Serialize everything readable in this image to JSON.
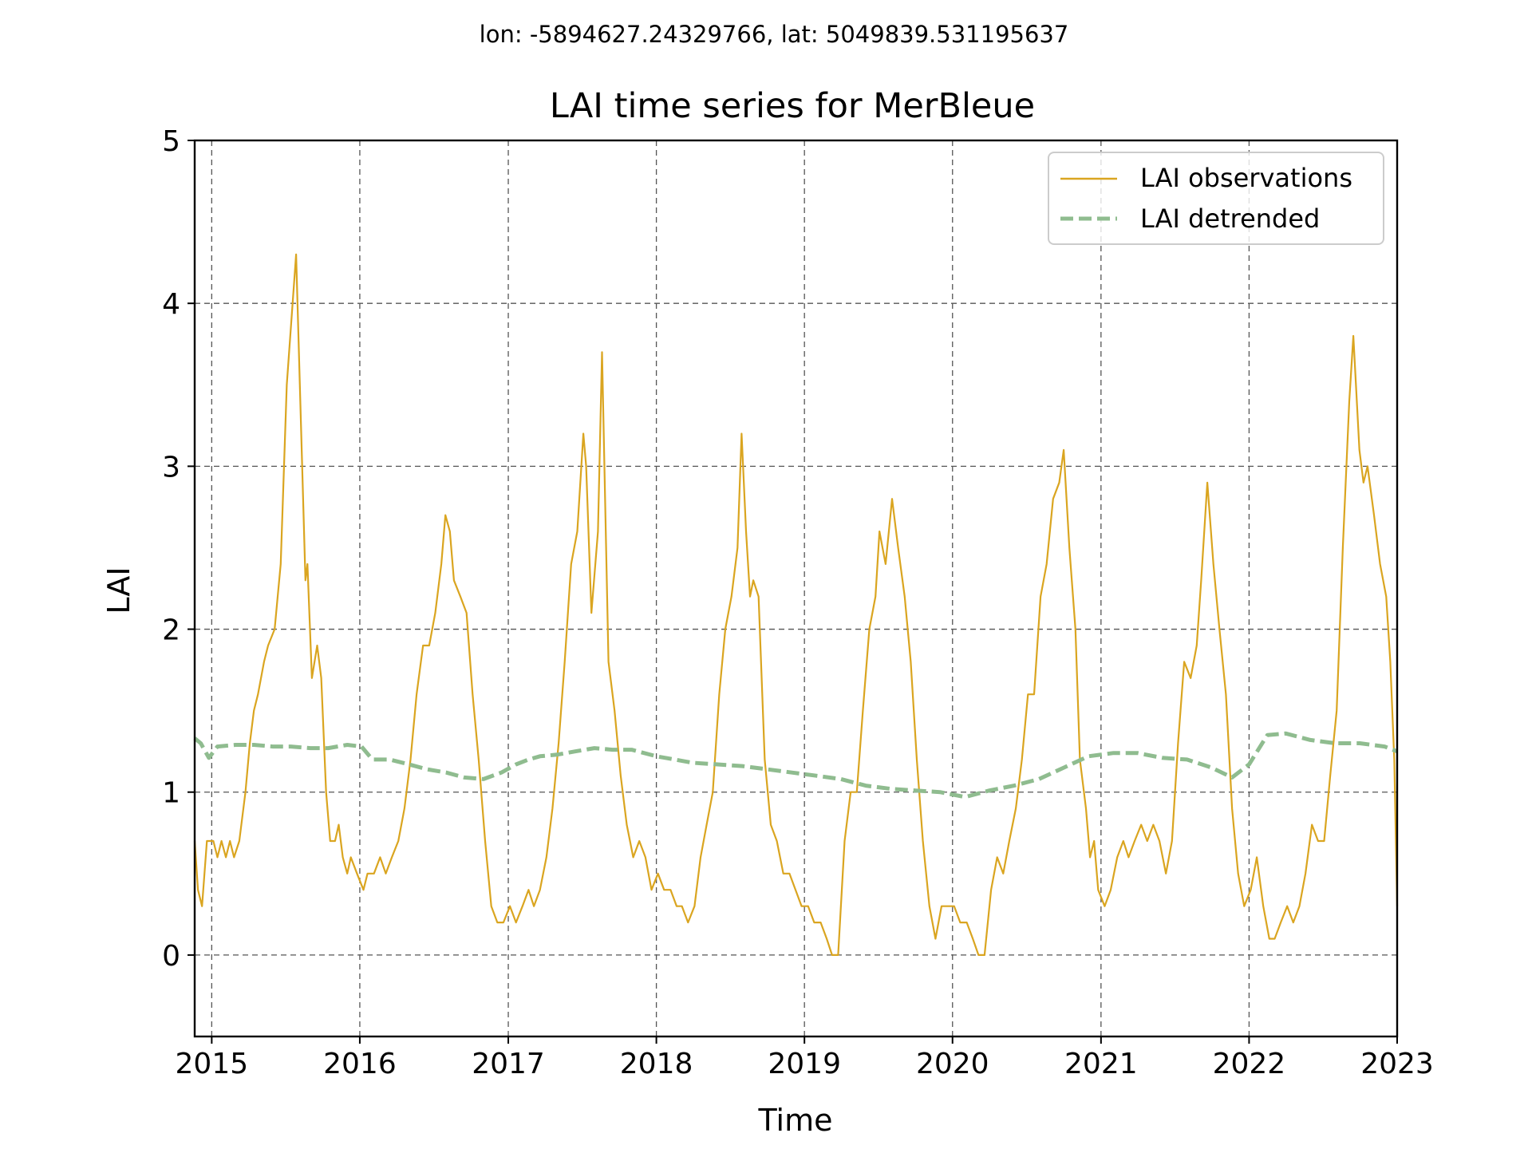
{
  "chart_data": {
    "type": "line",
    "suptitle": "lon: -5894627.24329766, lat: 5049839.531195637",
    "title": "LAI time series for MerBleue",
    "xlabel": "Time",
    "ylabel": "LAI",
    "xlim": [
      "2014-11-20",
      "2023-01-01"
    ],
    "ylim": [
      -0.5,
      5
    ],
    "x_ticks": [
      "2015",
      "2016",
      "2017",
      "2018",
      "2019",
      "2020",
      "2021",
      "2022",
      "2023"
    ],
    "y_ticks": [
      "0",
      "1",
      "2",
      "3",
      "4",
      "5"
    ],
    "grid": true,
    "legend_position": "upper-right",
    "series": [
      {
        "name": "LAI observations",
        "color": "#DAA520",
        "style": "solid",
        "points": [
          [
            "2014-11-20",
            0.7
          ],
          [
            "2014-11-28",
            0.4
          ],
          [
            "2014-12-08",
            0.3
          ],
          [
            "2014-12-20",
            0.7
          ],
          [
            "2015-01-05",
            0.7
          ],
          [
            "2015-01-15",
            0.6
          ],
          [
            "2015-01-25",
            0.7
          ],
          [
            "2015-02-05",
            0.6
          ],
          [
            "2015-02-15",
            0.7
          ],
          [
            "2015-02-25",
            0.6
          ],
          [
            "2015-03-10",
            0.7
          ],
          [
            "2015-03-25",
            1.0
          ],
          [
            "2015-04-05",
            1.3
          ],
          [
            "2015-04-15",
            1.5
          ],
          [
            "2015-04-25",
            1.6
          ],
          [
            "2015-05-10",
            1.8
          ],
          [
            "2015-05-20",
            1.9
          ],
          [
            "2015-06-05",
            2.0
          ],
          [
            "2015-06-20",
            2.4
          ],
          [
            "2015-07-05",
            3.5
          ],
          [
            "2015-07-28",
            4.3
          ],
          [
            "2015-08-12",
            3.0
          ],
          [
            "2015-08-20",
            2.3
          ],
          [
            "2015-08-25",
            2.4
          ],
          [
            "2015-09-05",
            1.7
          ],
          [
            "2015-09-18",
            1.9
          ],
          [
            "2015-09-28",
            1.7
          ],
          [
            "2015-10-10",
            1.0
          ],
          [
            "2015-10-20",
            0.7
          ],
          [
            "2015-11-01",
            0.7
          ],
          [
            "2015-11-10",
            0.8
          ],
          [
            "2015-11-20",
            0.6
          ],
          [
            "2015-12-01",
            0.5
          ],
          [
            "2015-12-10",
            0.6
          ],
          [
            "2015-12-25",
            0.5
          ],
          [
            "2016-01-10",
            0.4
          ],
          [
            "2016-01-20",
            0.5
          ],
          [
            "2016-02-05",
            0.5
          ],
          [
            "2016-02-20",
            0.6
          ],
          [
            "2016-03-05",
            0.5
          ],
          [
            "2016-03-20",
            0.6
          ],
          [
            "2016-04-05",
            0.7
          ],
          [
            "2016-04-20",
            0.9
          ],
          [
            "2016-05-05",
            1.2
          ],
          [
            "2016-05-20",
            1.6
          ],
          [
            "2016-06-05",
            1.9
          ],
          [
            "2016-06-20",
            1.9
          ],
          [
            "2016-07-05",
            2.1
          ],
          [
            "2016-07-20",
            2.4
          ],
          [
            "2016-07-30",
            2.7
          ],
          [
            "2016-08-10",
            2.6
          ],
          [
            "2016-08-20",
            2.3
          ],
          [
            "2016-09-05",
            2.2
          ],
          [
            "2016-09-20",
            2.1
          ],
          [
            "2016-10-05",
            1.6
          ],
          [
            "2016-10-20",
            1.2
          ],
          [
            "2016-11-05",
            0.7
          ],
          [
            "2016-11-20",
            0.3
          ],
          [
            "2016-12-05",
            0.2
          ],
          [
            "2016-12-20",
            0.2
          ],
          [
            "2017-01-05",
            0.3
          ],
          [
            "2017-01-20",
            0.2
          ],
          [
            "2017-02-05",
            0.3
          ],
          [
            "2017-02-20",
            0.4
          ],
          [
            "2017-03-05",
            0.3
          ],
          [
            "2017-03-20",
            0.4
          ],
          [
            "2017-04-05",
            0.6
          ],
          [
            "2017-04-20",
            0.9
          ],
          [
            "2017-05-05",
            1.3
          ],
          [
            "2017-05-20",
            1.8
          ],
          [
            "2017-06-05",
            2.4
          ],
          [
            "2017-06-20",
            2.6
          ],
          [
            "2017-07-05",
            3.2
          ],
          [
            "2017-07-12",
            3.0
          ],
          [
            "2017-07-25",
            2.1
          ],
          [
            "2017-08-10",
            2.6
          ],
          [
            "2017-08-20",
            3.7
          ],
          [
            "2017-09-05",
            1.8
          ],
          [
            "2017-09-20",
            1.5
          ],
          [
            "2017-10-05",
            1.1
          ],
          [
            "2017-10-20",
            0.8
          ],
          [
            "2017-11-05",
            0.6
          ],
          [
            "2017-11-20",
            0.7
          ],
          [
            "2017-12-05",
            0.6
          ],
          [
            "2017-12-20",
            0.4
          ],
          [
            "2018-01-05",
            0.5
          ],
          [
            "2018-01-20",
            0.4
          ],
          [
            "2018-02-05",
            0.4
          ],
          [
            "2018-02-20",
            0.3
          ],
          [
            "2018-03-05",
            0.3
          ],
          [
            "2018-03-20",
            0.2
          ],
          [
            "2018-04-05",
            0.3
          ],
          [
            "2018-04-20",
            0.6
          ],
          [
            "2018-05-05",
            0.8
          ],
          [
            "2018-05-20",
            1.0
          ],
          [
            "2018-06-05",
            1.6
          ],
          [
            "2018-06-20",
            2.0
          ],
          [
            "2018-07-05",
            2.2
          ],
          [
            "2018-07-20",
            2.5
          ],
          [
            "2018-07-30",
            3.2
          ],
          [
            "2018-08-10",
            2.6
          ],
          [
            "2018-08-20",
            2.2
          ],
          [
            "2018-08-28",
            2.3
          ],
          [
            "2018-09-10",
            2.2
          ],
          [
            "2018-09-25",
            1.2
          ],
          [
            "2018-10-10",
            0.8
          ],
          [
            "2018-10-25",
            0.7
          ],
          [
            "2018-11-10",
            0.5
          ],
          [
            "2018-11-25",
            0.5
          ],
          [
            "2018-12-10",
            0.4
          ],
          [
            "2018-12-25",
            0.3
          ],
          [
            "2019-01-10",
            0.3
          ],
          [
            "2019-01-25",
            0.2
          ],
          [
            "2019-02-10",
            0.2
          ],
          [
            "2019-02-25",
            0.1
          ],
          [
            "2019-03-10",
            0.0
          ],
          [
            "2019-03-25",
            0.0
          ],
          [
            "2019-04-10",
            0.7
          ],
          [
            "2019-04-25",
            1.0
          ],
          [
            "2019-05-10",
            1.0
          ],
          [
            "2019-05-25",
            1.5
          ],
          [
            "2019-06-10",
            2.0
          ],
          [
            "2019-06-25",
            2.2
          ],
          [
            "2019-07-05",
            2.6
          ],
          [
            "2019-07-20",
            2.4
          ],
          [
            "2019-08-05",
            2.8
          ],
          [
            "2019-08-20",
            2.5
          ],
          [
            "2019-09-05",
            2.2
          ],
          [
            "2019-09-20",
            1.8
          ],
          [
            "2019-10-05",
            1.2
          ],
          [
            "2019-10-20",
            0.7
          ],
          [
            "2019-11-05",
            0.3
          ],
          [
            "2019-11-20",
            0.1
          ],
          [
            "2019-12-05",
            0.3
          ],
          [
            "2019-12-20",
            0.3
          ],
          [
            "2020-01-05",
            0.3
          ],
          [
            "2020-01-20",
            0.2
          ],
          [
            "2020-02-05",
            0.2
          ],
          [
            "2020-02-20",
            0.1
          ],
          [
            "2020-03-05",
            0.0
          ],
          [
            "2020-03-20",
            0.0
          ],
          [
            "2020-04-05",
            0.4
          ],
          [
            "2020-04-20",
            0.6
          ],
          [
            "2020-05-05",
            0.5
          ],
          [
            "2020-05-20",
            0.7
          ],
          [
            "2020-06-05",
            0.9
          ],
          [
            "2020-06-20",
            1.2
          ],
          [
            "2020-07-05",
            1.6
          ],
          [
            "2020-07-20",
            1.6
          ],
          [
            "2020-08-05",
            2.2
          ],
          [
            "2020-08-20",
            2.4
          ],
          [
            "2020-09-05",
            2.8
          ],
          [
            "2020-09-20",
            2.9
          ],
          [
            "2020-10-01",
            3.1
          ],
          [
            "2020-10-15",
            2.5
          ],
          [
            "2020-10-30",
            2.0
          ],
          [
            "2020-11-10",
            1.2
          ],
          [
            "2020-11-25",
            0.9
          ],
          [
            "2020-12-05",
            0.6
          ],
          [
            "2020-12-15",
            0.7
          ],
          [
            "2020-12-25",
            0.4
          ],
          [
            "2021-01-10",
            0.3
          ],
          [
            "2021-01-25",
            0.4
          ],
          [
            "2021-02-10",
            0.6
          ],
          [
            "2021-02-25",
            0.7
          ],
          [
            "2021-03-10",
            0.6
          ],
          [
            "2021-03-25",
            0.7
          ],
          [
            "2021-04-10",
            0.8
          ],
          [
            "2021-04-25",
            0.7
          ],
          [
            "2021-05-10",
            0.8
          ],
          [
            "2021-05-25",
            0.7
          ],
          [
            "2021-06-10",
            0.5
          ],
          [
            "2021-06-25",
            0.7
          ],
          [
            "2021-07-10",
            1.3
          ],
          [
            "2021-07-25",
            1.8
          ],
          [
            "2021-08-10",
            1.7
          ],
          [
            "2021-08-25",
            1.9
          ],
          [
            "2021-09-05",
            2.3
          ],
          [
            "2021-09-20",
            2.9
          ],
          [
            "2021-10-05",
            2.4
          ],
          [
            "2021-10-20",
            2.0
          ],
          [
            "2021-11-05",
            1.6
          ],
          [
            "2021-11-20",
            0.9
          ],
          [
            "2021-12-05",
            0.5
          ],
          [
            "2021-12-20",
            0.3
          ],
          [
            "2022-01-05",
            0.4
          ],
          [
            "2022-01-20",
            0.6
          ],
          [
            "2022-02-05",
            0.3
          ],
          [
            "2022-02-20",
            0.1
          ],
          [
            "2022-03-05",
            0.1
          ],
          [
            "2022-03-20",
            0.2
          ],
          [
            "2022-04-05",
            0.3
          ],
          [
            "2022-04-20",
            0.2
          ],
          [
            "2022-05-05",
            0.3
          ],
          [
            "2022-05-20",
            0.5
          ],
          [
            "2022-06-05",
            0.8
          ],
          [
            "2022-06-20",
            0.7
          ],
          [
            "2022-07-05",
            0.7
          ],
          [
            "2022-07-20",
            1.1
          ],
          [
            "2022-08-05",
            1.5
          ],
          [
            "2022-08-20",
            2.5
          ],
          [
            "2022-09-05",
            3.4
          ],
          [
            "2022-09-15",
            3.8
          ],
          [
            "2022-09-30",
            3.1
          ],
          [
            "2022-10-10",
            2.9
          ],
          [
            "2022-10-20",
            3.0
          ],
          [
            "2022-11-05",
            2.7
          ],
          [
            "2022-11-20",
            2.4
          ],
          [
            "2022-12-05",
            2.2
          ],
          [
            "2022-12-15",
            1.8
          ],
          [
            "2022-12-25",
            1.2
          ],
          [
            "2023-01-01",
            0.3
          ]
        ]
      },
      {
        "name": "LAI detrended",
        "color": "#8FBC8F",
        "style": "dashed",
        "points": [
          [
            "2014-11-20",
            1.33
          ],
          [
            "2014-12-05",
            1.3
          ],
          [
            "2014-12-25",
            1.21
          ],
          [
            "2015-01-15",
            1.28
          ],
          [
            "2015-03-01",
            1.29
          ],
          [
            "2015-04-15",
            1.29
          ],
          [
            "2015-06-01",
            1.28
          ],
          [
            "2015-07-15",
            1.28
          ],
          [
            "2015-09-01",
            1.27
          ],
          [
            "2015-10-15",
            1.27
          ],
          [
            "2015-12-01",
            1.29
          ],
          [
            "2016-01-05",
            1.28
          ],
          [
            "2016-02-01",
            1.2
          ],
          [
            "2016-03-15",
            1.2
          ],
          [
            "2016-05-01",
            1.17
          ],
          [
            "2016-06-15",
            1.14
          ],
          [
            "2016-08-01",
            1.12
          ],
          [
            "2016-09-15",
            1.09
          ],
          [
            "2016-11-01",
            1.08
          ],
          [
            "2016-12-15",
            1.12
          ],
          [
            "2017-01-20",
            1.17
          ],
          [
            "2017-02-20",
            1.2
          ],
          [
            "2017-03-20",
            1.22
          ],
          [
            "2017-05-01",
            1.23
          ],
          [
            "2017-06-15",
            1.25
          ],
          [
            "2017-08-01",
            1.27
          ],
          [
            "2017-09-15",
            1.26
          ],
          [
            "2017-11-01",
            1.26
          ],
          [
            "2018-01-01",
            1.22
          ],
          [
            "2018-02-15",
            1.2
          ],
          [
            "2018-04-01",
            1.18
          ],
          [
            "2018-06-01",
            1.17
          ],
          [
            "2018-08-01",
            1.16
          ],
          [
            "2018-10-01",
            1.14
          ],
          [
            "2018-12-01",
            1.12
          ],
          [
            "2019-02-01",
            1.1
          ],
          [
            "2019-04-01",
            1.08
          ],
          [
            "2019-06-01",
            1.04
          ],
          [
            "2019-08-01",
            1.02
          ],
          [
            "2019-10-01",
            1.01
          ],
          [
            "2019-12-01",
            1.0
          ],
          [
            "2020-02-01",
            0.97
          ],
          [
            "2020-04-01",
            1.01
          ],
          [
            "2020-06-01",
            1.04
          ],
          [
            "2020-08-01",
            1.08
          ],
          [
            "2020-10-01",
            1.15
          ],
          [
            "2020-12-01",
            1.22
          ],
          [
            "2021-02-01",
            1.24
          ],
          [
            "2021-04-01",
            1.24
          ],
          [
            "2021-06-01",
            1.21
          ],
          [
            "2021-08-01",
            1.2
          ],
          [
            "2021-10-01",
            1.15
          ],
          [
            "2021-11-20",
            1.09
          ],
          [
            "2022-01-01",
            1.17
          ],
          [
            "2022-02-15",
            1.35
          ],
          [
            "2022-04-01",
            1.36
          ],
          [
            "2022-06-01",
            1.32
          ],
          [
            "2022-08-01",
            1.3
          ],
          [
            "2022-10-01",
            1.3
          ],
          [
            "2022-12-01",
            1.28
          ],
          [
            "2023-01-01",
            1.25
          ]
        ]
      }
    ]
  }
}
